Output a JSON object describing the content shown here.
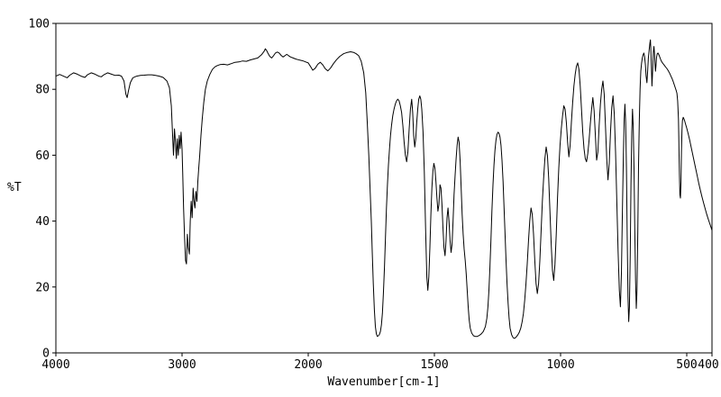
{
  "chart_data": {
    "type": "line",
    "title": "",
    "xlabel": "Wavenumber[cm-1]",
    "ylabel": "%T",
    "line_color": "#000000",
    "axis_color": "#000000",
    "background": "#ffffff",
    "grid": false,
    "legend": false,
    "x_axis": {
      "max": 4000,
      "min": 400,
      "reversed": true,
      "break_at": 2000,
      "right_scale_ratio": 2,
      "ticks": [
        4000,
        3000,
        2000,
        1500,
        1000,
        500,
        400
      ]
    },
    "y_axis": {
      "min": 0,
      "max": 100,
      "ticks": [
        0,
        20,
        40,
        60,
        80,
        100
      ]
    },
    "points": [
      [
        4000,
        84
      ],
      [
        3970,
        84.5
      ],
      [
        3940,
        84
      ],
      [
        3910,
        83.5
      ],
      [
        3890,
        84.3
      ],
      [
        3860,
        85
      ],
      [
        3830,
        84.6
      ],
      [
        3800,
        84
      ],
      [
        3770,
        83.6
      ],
      [
        3750,
        84.4
      ],
      [
        3720,
        85
      ],
      [
        3690,
        84.6
      ],
      [
        3660,
        84
      ],
      [
        3640,
        83.8
      ],
      [
        3620,
        84.4
      ],
      [
        3590,
        85
      ],
      [
        3560,
        84.6
      ],
      [
        3530,
        84.2
      ],
      [
        3500,
        84.3
      ],
      [
        3480,
        84
      ],
      [
        3460,
        82.5
      ],
      [
        3445,
        78.5
      ],
      [
        3435,
        77.5
      ],
      [
        3425,
        79.5
      ],
      [
        3410,
        82
      ],
      [
        3390,
        83.5
      ],
      [
        3360,
        84
      ],
      [
        3330,
        84.2
      ],
      [
        3300,
        84.3
      ],
      [
        3270,
        84.4
      ],
      [
        3240,
        84.4
      ],
      [
        3210,
        84.2
      ],
      [
        3180,
        84
      ],
      [
        3150,
        83.6
      ],
      [
        3120,
        82.5
      ],
      [
        3100,
        80.5
      ],
      [
        3085,
        75
      ],
      [
        3075,
        66
      ],
      [
        3068,
        60
      ],
      [
        3060,
        68
      ],
      [
        3052,
        64
      ],
      [
        3045,
        59
      ],
      [
        3038,
        65
      ],
      [
        3030,
        60
      ],
      [
        3022,
        66
      ],
      [
        3015,
        62
      ],
      [
        3008,
        67
      ],
      [
        3000,
        62
      ],
      [
        2995,
        55
      ],
      [
        2988,
        44
      ],
      [
        2980,
        35
      ],
      [
        2972,
        28
      ],
      [
        2965,
        27
      ],
      [
        2958,
        36
      ],
      [
        2950,
        32
      ],
      [
        2942,
        30
      ],
      [
        2935,
        40
      ],
      [
        2928,
        46
      ],
      [
        2920,
        41
      ],
      [
        2912,
        50
      ],
      [
        2905,
        46
      ],
      [
        2898,
        44
      ],
      [
        2890,
        49
      ],
      [
        2882,
        46
      ],
      [
        2875,
        52
      ],
      [
        2868,
        56
      ],
      [
        2860,
        60
      ],
      [
        2850,
        66
      ],
      [
        2840,
        71
      ],
      [
        2828,
        76
      ],
      [
        2815,
        80
      ],
      [
        2800,
        82.5
      ],
      [
        2780,
        84.5
      ],
      [
        2760,
        86
      ],
      [
        2740,
        86.8
      ],
      [
        2720,
        87.2
      ],
      [
        2700,
        87.5
      ],
      [
        2670,
        87.6
      ],
      [
        2640,
        87.4
      ],
      [
        2610,
        87.8
      ],
      [
        2580,
        88.2
      ],
      [
        2550,
        88.3
      ],
      [
        2520,
        88.6
      ],
      [
        2490,
        88.5
      ],
      [
        2460,
        88.9
      ],
      [
        2430,
        89.2
      ],
      [
        2400,
        89.5
      ],
      [
        2370,
        90.5
      ],
      [
        2350,
        91.5
      ],
      [
        2340,
        92.3
      ],
      [
        2330,
        91.8
      ],
      [
        2320,
        91
      ],
      [
        2305,
        90
      ],
      [
        2290,
        89.5
      ],
      [
        2275,
        90.2
      ],
      [
        2260,
        91
      ],
      [
        2245,
        91.3
      ],
      [
        2230,
        91
      ],
      [
        2215,
        90.3
      ],
      [
        2200,
        89.8
      ],
      [
        2185,
        90.2
      ],
      [
        2170,
        90.6
      ],
      [
        2155,
        90.2
      ],
      [
        2140,
        89.8
      ],
      [
        2120,
        89.5
      ],
      [
        2100,
        89.2
      ],
      [
        2080,
        89
      ],
      [
        2060,
        88.8
      ],
      [
        2040,
        88.6
      ],
      [
        2020,
        88.3
      ],
      [
        2000,
        88
      ],
      [
        1990,
        86.8
      ],
      [
        1982,
        85.8
      ],
      [
        1972,
        86.4
      ],
      [
        1962,
        87.6
      ],
      [
        1952,
        88.2
      ],
      [
        1942,
        87.4
      ],
      [
        1932,
        86.2
      ],
      [
        1922,
        85.6
      ],
      [
        1912,
        86.4
      ],
      [
        1900,
        87.8
      ],
      [
        1888,
        89
      ],
      [
        1875,
        90
      ],
      [
        1860,
        90.8
      ],
      [
        1845,
        91.2
      ],
      [
        1832,
        91.4
      ],
      [
        1820,
        91.2
      ],
      [
        1810,
        90.8
      ],
      [
        1800,
        90.2
      ],
      [
        1790,
        88.5
      ],
      [
        1780,
        85
      ],
      [
        1772,
        79
      ],
      [
        1766,
        70
      ],
      [
        1760,
        60
      ],
      [
        1755,
        50
      ],
      [
        1750,
        40
      ],
      [
        1746,
        30
      ],
      [
        1742,
        21
      ],
      [
        1738,
        13
      ],
      [
        1734,
        8
      ],
      [
        1730,
        5.8
      ],
      [
        1726,
        5
      ],
      [
        1722,
        5.2
      ],
      [
        1718,
        5.6
      ],
      [
        1714,
        6.5
      ],
      [
        1710,
        8.5
      ],
      [
        1706,
        12
      ],
      [
        1702,
        18
      ],
      [
        1698,
        26
      ],
      [
        1694,
        35
      ],
      [
        1690,
        44
      ],
      [
        1686,
        51
      ],
      [
        1682,
        57
      ],
      [
        1678,
        62
      ],
      [
        1674,
        66
      ],
      [
        1670,
        69
      ],
      [
        1665,
        72
      ],
      [
        1660,
        74
      ],
      [
        1655,
        75.5
      ],
      [
        1650,
        76.5
      ],
      [
        1645,
        77
      ],
      [
        1640,
        76.5
      ],
      [
        1635,
        75
      ],
      [
        1630,
        73
      ],
      [
        1625,
        69
      ],
      [
        1620,
        64
      ],
      [
        1615,
        60
      ],
      [
        1610,
        58
      ],
      [
        1605,
        61
      ],
      [
        1600,
        68
      ],
      [
        1595,
        74
      ],
      [
        1590,
        77
      ],
      [
        1586,
        73
      ],
      [
        1582,
        66
      ],
      [
        1578,
        62.5
      ],
      [
        1574,
        65
      ],
      [
        1570,
        70
      ],
      [
        1566,
        74
      ],
      [
        1562,
        77
      ],
      [
        1558,
        78
      ],
      [
        1554,
        77
      ],
      [
        1550,
        74
      ],
      [
        1545,
        67
      ],
      [
        1540,
        55
      ],
      [
        1535,
        38
      ],
      [
        1530,
        23
      ],
      [
        1526,
        19
      ],
      [
        1522,
        23
      ],
      [
        1518,
        32
      ],
      [
        1514,
        42
      ],
      [
        1510,
        50
      ],
      [
        1506,
        55
      ],
      [
        1502,
        57.5
      ],
      [
        1498,
        56
      ],
      [
        1494,
        52
      ],
      [
        1490,
        47
      ],
      [
        1486,
        43
      ],
      [
        1482,
        45
      ],
      [
        1478,
        51
      ],
      [
        1474,
        50
      ],
      [
        1470,
        45
      ],
      [
        1466,
        38
      ],
      [
        1462,
        32
      ],
      [
        1458,
        29.5
      ],
      [
        1454,
        34
      ],
      [
        1450,
        41
      ],
      [
        1446,
        44
      ],
      [
        1442,
        40
      ],
      [
        1438,
        34
      ],
      [
        1434,
        30.5
      ],
      [
        1430,
        33
      ],
      [
        1426,
        40
      ],
      [
        1422,
        48
      ],
      [
        1418,
        54
      ],
      [
        1414,
        59
      ],
      [
        1410,
        63
      ],
      [
        1406,
        65.5
      ],
      [
        1402,
        64
      ],
      [
        1398,
        58
      ],
      [
        1394,
        50
      ],
      [
        1390,
        42
      ],
      [
        1386,
        36
      ],
      [
        1382,
        31.5
      ],
      [
        1378,
        28
      ],
      [
        1374,
        24
      ],
      [
        1370,
        19
      ],
      [
        1366,
        14
      ],
      [
        1362,
        10
      ],
      [
        1358,
        7.5
      ],
      [
        1352,
        6
      ],
      [
        1345,
        5.2
      ],
      [
        1338,
        5
      ],
      [
        1330,
        5
      ],
      [
        1322,
        5.3
      ],
      [
        1314,
        5.8
      ],
      [
        1306,
        6.5
      ],
      [
        1298,
        8
      ],
      [
        1292,
        10.5
      ],
      [
        1288,
        14
      ],
      [
        1284,
        19
      ],
      [
        1280,
        26
      ],
      [
        1276,
        34
      ],
      [
        1272,
        43
      ],
      [
        1268,
        51
      ],
      [
        1264,
        57
      ],
      [
        1260,
        61.5
      ],
      [
        1256,
        64.5
      ],
      [
        1252,
        66.3
      ],
      [
        1248,
        67
      ],
      [
        1244,
        66.6
      ],
      [
        1240,
        65.5
      ],
      [
        1236,
        63
      ],
      [
        1232,
        58.5
      ],
      [
        1228,
        52
      ],
      [
        1224,
        44
      ],
      [
        1220,
        36
      ],
      [
        1216,
        28
      ],
      [
        1212,
        21
      ],
      [
        1208,
        15
      ],
      [
        1204,
        10.5
      ],
      [
        1200,
        7.5
      ],
      [
        1194,
        5.5
      ],
      [
        1188,
        4.6
      ],
      [
        1182,
        4.4
      ],
      [
        1176,
        4.8
      ],
      [
        1170,
        5.4
      ],
      [
        1164,
        6.2
      ],
      [
        1158,
        7.5
      ],
      [
        1152,
        9.5
      ],
      [
        1147,
        12
      ],
      [
        1142,
        16
      ],
      [
        1137,
        21
      ],
      [
        1132,
        27
      ],
      [
        1127,
        34
      ],
      [
        1122,
        40
      ],
      [
        1117,
        44
      ],
      [
        1112,
        42
      ],
      [
        1107,
        36
      ],
      [
        1102,
        28
      ],
      [
        1097,
        21
      ],
      [
        1092,
        18
      ],
      [
        1087,
        21
      ],
      [
        1082,
        28
      ],
      [
        1077,
        37
      ],
      [
        1072,
        46
      ],
      [
        1067,
        53
      ],
      [
        1062,
        59
      ],
      [
        1057,
        62.5
      ],
      [
        1052,
        60
      ],
      [
        1047,
        53
      ],
      [
        1042,
        43
      ],
      [
        1037,
        33
      ],
      [
        1032,
        25
      ],
      [
        1027,
        22
      ],
      [
        1022,
        27
      ],
      [
        1017,
        36
      ],
      [
        1012,
        47
      ],
      [
        1007,
        56
      ],
      [
        1002,
        63
      ],
      [
        997,
        68
      ],
      [
        992,
        72
      ],
      [
        987,
        75
      ],
      [
        982,
        74
      ],
      [
        977,
        70
      ],
      [
        972,
        64
      ],
      [
        967,
        59.5
      ],
      [
        962,
        63
      ],
      [
        957,
        70
      ],
      [
        952,
        76
      ],
      [
        947,
        81
      ],
      [
        942,
        84.5
      ],
      [
        937,
        87
      ],
      [
        932,
        88
      ],
      [
        927,
        86
      ],
      [
        922,
        81
      ],
      [
        917,
        74
      ],
      [
        912,
        67
      ],
      [
        907,
        62
      ],
      [
        902,
        59
      ],
      [
        897,
        58
      ],
      [
        892,
        60.5
      ],
      [
        887,
        64.5
      ],
      [
        882,
        69.5
      ],
      [
        877,
        74
      ],
      [
        872,
        77.5
      ],
      [
        867,
        73.5
      ],
      [
        862,
        66
      ],
      [
        857,
        58.5
      ],
      [
        852,
        61
      ],
      [
        847,
        69
      ],
      [
        842,
        75.5
      ],
      [
        837,
        80
      ],
      [
        832,
        82.5
      ],
      [
        827,
        78.5
      ],
      [
        822,
        69
      ],
      [
        817,
        59
      ],
      [
        812,
        52.5
      ],
      [
        807,
        57.5
      ],
      [
        802,
        67
      ],
      [
        797,
        74.5
      ],
      [
        792,
        78
      ],
      [
        787,
        72.5
      ],
      [
        782,
        61
      ],
      [
        777,
        46
      ],
      [
        772,
        31
      ],
      [
        767,
        19
      ],
      [
        763,
        14
      ],
      [
        759,
        24
      ],
      [
        755,
        43
      ],
      [
        751,
        60
      ],
      [
        748,
        71
      ],
      [
        745,
        75.5
      ],
      [
        742,
        70
      ],
      [
        739,
        56
      ],
      [
        736,
        36
      ],
      [
        733,
        17
      ],
      [
        730,
        9.5
      ],
      [
        727,
        14
      ],
      [
        724,
        30
      ],
      [
        721,
        51
      ],
      [
        718,
        67
      ],
      [
        715,
        74
      ],
      [
        712,
        69
      ],
      [
        709,
        56
      ],
      [
        706,
        38
      ],
      [
        703,
        22
      ],
      [
        700,
        13.5
      ],
      [
        697,
        19
      ],
      [
        694,
        37
      ],
      [
        691,
        57
      ],
      [
        688,
        71
      ],
      [
        685,
        80
      ],
      [
        682,
        85.5
      ],
      [
        679,
        88
      ],
      [
        676,
        89.5
      ],
      [
        673,
        90.5
      ],
      [
        670,
        91
      ],
      [
        667,
        90
      ],
      [
        664,
        87.5
      ],
      [
        661,
        84
      ],
      [
        658,
        82
      ],
      [
        655,
        85.5
      ],
      [
        652,
        89.5
      ],
      [
        649,
        92
      ],
      [
        646,
        94
      ],
      [
        644,
        95
      ],
      [
        642,
        91.5
      ],
      [
        640,
        86.5
      ],
      [
        638,
        81
      ],
      [
        636,
        84
      ],
      [
        634,
        88.5
      ],
      [
        632,
        91.5
      ],
      [
        630,
        93
      ],
      [
        628,
        91
      ],
      [
        626,
        88
      ],
      [
        624,
        85.5
      ],
      [
        622,
        87
      ],
      [
        620,
        89.5
      ],
      [
        617,
        90.8
      ],
      [
        614,
        91
      ],
      [
        610,
        90.4
      ],
      [
        606,
        89.6
      ],
      [
        602,
        88.8
      ],
      [
        598,
        88.2
      ],
      [
        594,
        87.8
      ],
      [
        590,
        87.4
      ],
      [
        586,
        87
      ],
      [
        582,
        86.6
      ],
      [
        578,
        86.2
      ],
      [
        574,
        85.7
      ],
      [
        570,
        85.2
      ],
      [
        566,
        84.6
      ],
      [
        562,
        83.9
      ],
      [
        558,
        83.2
      ],
      [
        554,
        82.4
      ],
      [
        550,
        81.5
      ],
      [
        546,
        80.6
      ],
      [
        542,
        79.7
      ],
      [
        539,
        78.8
      ],
      [
        536,
        76.5
      ],
      [
        533,
        71
      ],
      [
        531,
        63
      ],
      [
        529,
        54
      ],
      [
        527,
        48
      ],
      [
        525,
        47
      ],
      [
        523,
        52
      ],
      [
        521,
        61
      ],
      [
        519,
        67.5
      ],
      [
        517,
        70.5
      ],
      [
        514,
        71.5
      ],
      [
        511,
        71
      ],
      [
        508,
        70.3
      ],
      [
        505,
        69.5
      ],
      [
        500,
        68.2
      ],
      [
        494,
        66.4
      ],
      [
        488,
        64.4
      ],
      [
        482,
        62.3
      ],
      [
        476,
        60.1
      ],
      [
        470,
        57.9
      ],
      [
        464,
        55.7
      ],
      [
        458,
        53.5
      ],
      [
        452,
        51.4
      ],
      [
        446,
        49.4
      ],
      [
        440,
        47.5
      ],
      [
        434,
        45.7
      ],
      [
        428,
        44
      ],
      [
        422,
        42.4
      ],
      [
        416,
        40.9
      ],
      [
        410,
        39.5
      ],
      [
        405,
        38.4
      ],
      [
        400,
        37.2
      ]
    ]
  }
}
